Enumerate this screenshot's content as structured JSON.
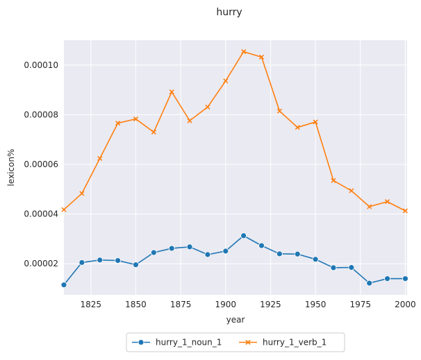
{
  "chart_data": {
    "type": "line",
    "title": "hurry",
    "xlabel": "year",
    "ylabel": "lexicon%",
    "xlim": [
      1810,
      2001
    ],
    "ylim": [
      7.5e-06,
      0.00011
    ],
    "x_ticks": [
      1825,
      1850,
      1875,
      1900,
      1925,
      1950,
      1975,
      2000
    ],
    "x_tick_labels": [
      "1825",
      "1850",
      "1875",
      "1900",
      "1925",
      "1950",
      "1975",
      "2000"
    ],
    "y_ticks": [
      2e-05,
      4e-05,
      6e-05,
      8e-05,
      0.0001
    ],
    "y_tick_labels": [
      "0.00002",
      "0.00004",
      "0.00006",
      "0.00008",
      "0.00010"
    ],
    "grid": true,
    "legend_position": "bottom-center",
    "x": [
      1810,
      1820,
      1830,
      1840,
      1850,
      1860,
      1870,
      1880,
      1890,
      1900,
      1910,
      1920,
      1930,
      1940,
      1950,
      1960,
      1970,
      1980,
      1990,
      2000
    ],
    "series": [
      {
        "name": "hurry_1_noun_1",
        "color": "#1f77b4",
        "marker": "circle",
        "values": [
          1.15e-05,
          2.05e-05,
          2.15e-05,
          2.13e-05,
          1.96e-05,
          2.45e-05,
          2.62e-05,
          2.68e-05,
          2.37e-05,
          2.51e-05,
          3.13e-05,
          2.73e-05,
          2.4e-05,
          2.39e-05,
          2.18e-05,
          1.84e-05,
          1.85e-05,
          1.22e-05,
          1.4e-05,
          1.4e-05
        ]
      },
      {
        "name": "hurry_1_verb_1",
        "color": "#ff7f0e",
        "marker": "x",
        "values": [
          4.18e-05,
          4.83e-05,
          6.24e-05,
          7.66e-05,
          7.83e-05,
          7.3e-05,
          8.92e-05,
          7.76e-05,
          8.31e-05,
          9.36e-05,
          0.0001054,
          0.0001032,
          8.15e-05,
          7.49e-05,
          7.71e-05,
          5.35e-05,
          4.94e-05,
          4.3e-05,
          4.5e-05,
          4.13e-05
        ]
      }
    ]
  }
}
